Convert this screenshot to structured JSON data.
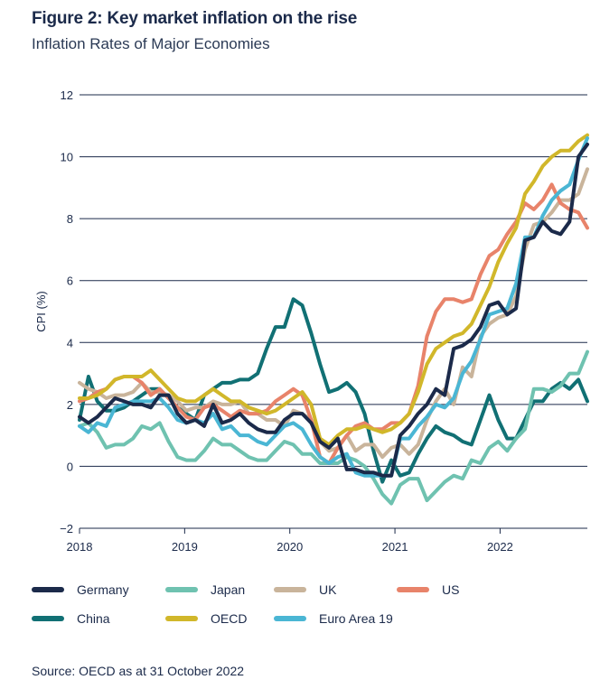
{
  "header": {
    "title": "Figure 2: Key market inflation on the rise",
    "subtitle": "Inflation Rates of Major Economies"
  },
  "footer": {
    "source": "Source: OECD as at 31 October 2022"
  },
  "chart_data": {
    "type": "line",
    "ylabel": "CPI (%)",
    "xlabel": "",
    "ylim": [
      -2,
      12
    ],
    "yticks": [
      12,
      10,
      8,
      6,
      4,
      2,
      0,
      -2
    ],
    "ytick_labels": [
      "12",
      "10",
      "8",
      "6",
      "4",
      "2",
      "0",
      "−2"
    ],
    "xlim": [
      2018.0,
      2022.83
    ],
    "xticks": [
      2018,
      2019,
      2020,
      2021,
      2022
    ],
    "xtick_labels": [
      "2018",
      "2019",
      "2020",
      "2021",
      "2022"
    ],
    "grid": "horizontal",
    "legend_position": "bottom",
    "series": [
      {
        "name": "Germany",
        "color": "#1b2a4a",
        "values": [
          1.6,
          1.4,
          1.6,
          1.9,
          2.2,
          2.1,
          2.0,
          2.0,
          1.9,
          2.3,
          2.3,
          1.7,
          1.4,
          1.5,
          1.3,
          2.0,
          1.4,
          1.5,
          1.7,
          1.4,
          1.2,
          1.1,
          1.1,
          1.5,
          1.7,
          1.7,
          1.4,
          0.8,
          0.6,
          0.9,
          -0.1,
          -0.1,
          -0.2,
          -0.2,
          -0.3,
          -0.3,
          1.0,
          1.3,
          1.7,
          2.0,
          2.5,
          2.3,
          3.8,
          3.9,
          4.1,
          4.5,
          5.2,
          5.3,
          4.9,
          5.1,
          7.3,
          7.4,
          7.9,
          7.6,
          7.5,
          7.9,
          10.0,
          10.4
        ]
      },
      {
        "name": "Japan",
        "color": "#6fc2b0",
        "values": [
          1.3,
          1.4,
          1.1,
          0.6,
          0.7,
          0.7,
          0.9,
          1.3,
          1.2,
          1.4,
          0.8,
          0.3,
          0.2,
          0.2,
          0.5,
          0.9,
          0.7,
          0.7,
          0.5,
          0.3,
          0.2,
          0.2,
          0.5,
          0.8,
          0.7,
          0.4,
          0.4,
          0.1,
          0.1,
          0.1,
          0.3,
          0.2,
          0.0,
          -0.4,
          -0.9,
          -1.2,
          -0.6,
          -0.4,
          -0.4,
          -1.1,
          -0.8,
          -0.5,
          -0.3,
          -0.4,
          0.2,
          0.1,
          0.6,
          0.8,
          0.5,
          0.9,
          1.2,
          2.5,
          2.5,
          2.4,
          2.6,
          3.0,
          3.0,
          3.7
        ]
      },
      {
        "name": "UK",
        "color": "#c9b49b",
        "values": [
          2.7,
          2.5,
          2.4,
          2.2,
          2.3,
          2.3,
          2.4,
          2.7,
          2.4,
          2.4,
          2.3,
          2.1,
          1.8,
          1.9,
          1.9,
          2.1,
          2.0,
          2.0,
          2.1,
          1.7,
          1.7,
          1.5,
          1.5,
          1.3,
          1.8,
          1.7,
          1.5,
          0.8,
          0.5,
          0.6,
          1.0,
          0.5,
          0.7,
          0.7,
          0.3,
          0.6,
          0.7,
          0.4,
          0.7,
          1.5,
          2.1,
          2.5,
          2.0,
          3.2,
          2.9,
          4.2,
          4.6,
          4.8,
          4.9,
          5.5,
          7.0,
          7.8,
          7.9,
          8.2,
          8.6,
          8.6,
          8.8,
          9.6
        ]
      },
      {
        "name": "US",
        "color": "#e8836a",
        "values": [
          2.1,
          2.2,
          2.4,
          2.5,
          2.8,
          2.9,
          2.9,
          2.7,
          2.3,
          2.5,
          2.2,
          1.9,
          1.6,
          1.5,
          1.9,
          2.0,
          1.8,
          1.6,
          1.8,
          1.7,
          1.7,
          1.8,
          2.1,
          2.3,
          2.5,
          2.3,
          1.5,
          0.3,
          0.1,
          0.6,
          1.0,
          1.3,
          1.4,
          1.2,
          1.2,
          1.4,
          1.4,
          1.7,
          2.6,
          4.2,
          5.0,
          5.4,
          5.4,
          5.3,
          5.4,
          6.2,
          6.8,
          7.0,
          7.5,
          7.9,
          8.5,
          8.3,
          8.6,
          9.1,
          8.5,
          8.3,
          8.2,
          7.7
        ]
      },
      {
        "name": "China",
        "color": "#117074",
        "values": [
          1.5,
          2.9,
          2.1,
          1.8,
          1.8,
          1.9,
          2.1,
          2.3,
          2.5,
          2.5,
          2.2,
          1.9,
          1.7,
          1.5,
          2.3,
          2.5,
          2.7,
          2.7,
          2.8,
          2.8,
          3.0,
          3.8,
          4.5,
          4.5,
          5.4,
          5.2,
          4.3,
          3.3,
          2.4,
          2.5,
          2.7,
          2.4,
          1.7,
          0.5,
          -0.5,
          0.2,
          -0.3,
          -0.2,
          0.4,
          0.9,
          1.3,
          1.1,
          1.0,
          0.8,
          0.7,
          1.5,
          2.3,
          1.5,
          0.9,
          0.9,
          1.5,
          2.1,
          2.1,
          2.5,
          2.7,
          2.5,
          2.8,
          2.1
        ]
      },
      {
        "name": "OECD",
        "color": "#d1b72a",
        "values": [
          2.2,
          2.2,
          2.3,
          2.5,
          2.8,
          2.9,
          2.9,
          2.9,
          3.1,
          2.8,
          2.5,
          2.2,
          2.1,
          2.1,
          2.3,
          2.5,
          2.3,
          2.1,
          2.1,
          1.9,
          1.8,
          1.7,
          1.8,
          2.0,
          2.2,
          2.4,
          2.0,
          0.9,
          0.7,
          1.0,
          1.2,
          1.2,
          1.3,
          1.2,
          1.1,
          1.2,
          1.4,
          1.7,
          2.4,
          3.3,
          3.8,
          4.0,
          4.2,
          4.3,
          4.6,
          5.2,
          5.8,
          6.6,
          7.2,
          7.7,
          8.8,
          9.2,
          9.7,
          10.0,
          10.2,
          10.2,
          10.5,
          10.7
        ]
      },
      {
        "name": "Euro Area 19",
        "color": "#4ab6d4",
        "values": [
          1.3,
          1.1,
          1.4,
          1.3,
          1.9,
          2.0,
          2.1,
          2.1,
          2.1,
          2.2,
          1.9,
          1.5,
          1.4,
          1.5,
          1.4,
          1.7,
          1.2,
          1.3,
          1.0,
          1.0,
          0.8,
          0.7,
          1.0,
          1.3,
          1.4,
          1.2,
          0.7,
          0.3,
          0.1,
          0.3,
          0.4,
          -0.2,
          -0.3,
          -0.3,
          -0.3,
          -0.3,
          0.9,
          0.9,
          1.3,
          1.6,
          2.0,
          1.9,
          2.2,
          3.0,
          3.4,
          4.1,
          4.9,
          5.0,
          5.1,
          5.9,
          7.4,
          7.4,
          8.1,
          8.6,
          8.9,
          9.1,
          9.9,
          10.6
        ]
      }
    ]
  },
  "legend_rows": [
    [
      "Germany",
      "Japan",
      "UK",
      "US"
    ],
    [
      "China",
      "OECD",
      "Euro Area 19"
    ]
  ]
}
